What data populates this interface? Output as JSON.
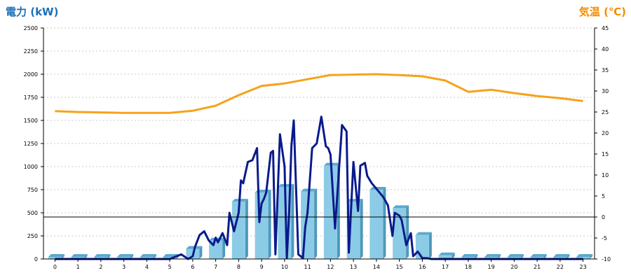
{
  "chart_data": {
    "type": "bar",
    "y_left_title": "電力 (kW)",
    "y_right_title": "気温 (℃)",
    "colors": {
      "left_title": "#1c6fb8",
      "right_title": "#f28c00",
      "bar_front": "#8ccbe6",
      "bar_side": "#4d98bb",
      "bar_top": "#5aa9cf",
      "power_line": "#0a1a8c",
      "temp_line": "#f7a21a",
      "grid": "#c8c8c8",
      "zero_line": "#000000"
    },
    "left_axis": {
      "min": 0,
      "max": 2500,
      "step": 250,
      "ticks": [
        "0",
        "250",
        "500",
        "750",
        "1000",
        "1250",
        "1500",
        "1750",
        "2000",
        "2250",
        "2500"
      ]
    },
    "right_axis": {
      "min": -10,
      "max": 45,
      "step": 5,
      "ticks": [
        "-10",
        "-5",
        "0",
        "5",
        "10",
        "15",
        "20",
        "25",
        "30",
        "35",
        "40",
        "45"
      ]
    },
    "categories": [
      "0",
      "1",
      "2",
      "3",
      "4",
      "5",
      "6",
      "7",
      "8",
      "9",
      "10",
      "11",
      "12",
      "13",
      "14",
      "15",
      "16",
      "17",
      "18",
      "19",
      "20",
      "21",
      "22",
      "23"
    ],
    "series": [
      {
        "kind": "bar",
        "axis": "left",
        "values": [
          0,
          0,
          0,
          0,
          0,
          0,
          110,
          200,
          620,
          720,
          780,
          730,
          1010,
          620,
          750,
          550,
          260,
          40,
          0,
          0,
          0,
          0,
          0,
          0
        ]
      },
      {
        "kind": "line",
        "axis": "left",
        "x": [
          0,
          1,
          2,
          3,
          4,
          5,
          5.5,
          5.8,
          6,
          6.1,
          6.3,
          6.5,
          6.7,
          6.9,
          7.0,
          7.1,
          7.3,
          7.5,
          7.6,
          7.8,
          8.0,
          8.1,
          8.2,
          8.4,
          8.6,
          8.8,
          8.9,
          9.0,
          9.1,
          9.2,
          9.4,
          9.5,
          9.6,
          9.8,
          10.0,
          10.1,
          10.2,
          10.3,
          10.4,
          10.6,
          10.8,
          10.9,
          11.0,
          11.2,
          11.4,
          11.6,
          11.8,
          11.9,
          12.0,
          12.2,
          12.5,
          12.7,
          12.8,
          13.0,
          13.2,
          13.3,
          13.5,
          13.6,
          13.8,
          14.0,
          14.3,
          14.5,
          14.7,
          14.8,
          15.0,
          15.1,
          15.3,
          15.5,
          15.6,
          15.8,
          16.0,
          16.2,
          16.4,
          16.6,
          16.8,
          17.0,
          17.3,
          17.6,
          18,
          19,
          20,
          21,
          22,
          23
        ],
        "y": [
          0,
          0,
          0,
          0,
          0,
          0,
          50,
          0,
          30,
          130,
          260,
          300,
          200,
          150,
          230,
          180,
          280,
          150,
          500,
          300,
          500,
          850,
          820,
          1050,
          1070,
          1200,
          400,
          600,
          650,
          720,
          1150,
          1170,
          50,
          1350,
          1000,
          10,
          500,
          1230,
          1500,
          50,
          10,
          350,
          500,
          1200,
          1250,
          1540,
          1220,
          1200,
          1130,
          330,
          1450,
          1380,
          70,
          1050,
          520,
          1010,
          1040,
          900,
          820,
          760,
          670,
          580,
          250,
          500,
          470,
          420,
          150,
          280,
          30,
          80,
          10,
          10,
          0,
          0,
          0,
          0,
          0,
          0,
          0,
          0,
          0,
          0,
          0,
          0
        ]
      },
      {
        "kind": "line",
        "axis": "right",
        "x": [
          0,
          1,
          2,
          3,
          4,
          5,
          6,
          7,
          8,
          9,
          10,
          11,
          12,
          13,
          14,
          15,
          16,
          17,
          18,
          19,
          20,
          21,
          22,
          23
        ],
        "y": [
          25.2,
          25.0,
          24.9,
          24.8,
          24.8,
          24.8,
          25.3,
          26.5,
          29.0,
          31.2,
          31.8,
          32.8,
          33.8,
          33.9,
          34.0,
          33.8,
          33.5,
          32.5,
          29.8,
          30.3,
          29.5,
          28.8,
          28.3,
          27.6
        ]
      }
    ],
    "grid": "horizontal dotted"
  }
}
